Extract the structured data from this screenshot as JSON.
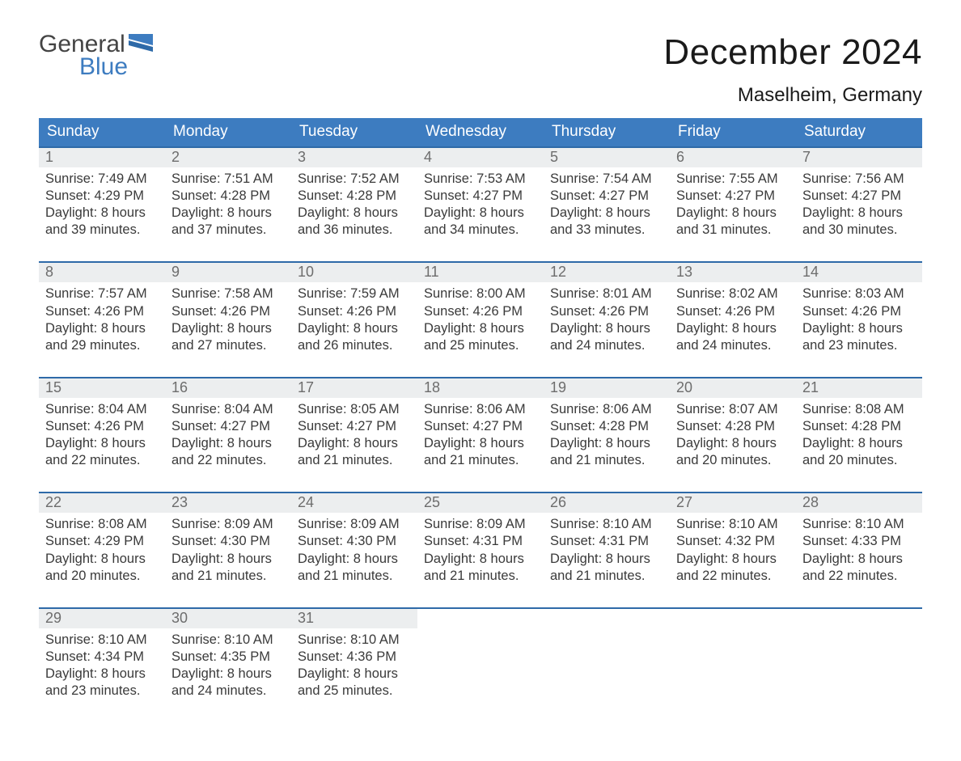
{
  "logo": {
    "line1": "General",
    "line2": "Blue"
  },
  "title": "December 2024",
  "location": "Maselheim, Germany",
  "colors": {
    "header_bg": "#3d7cc0",
    "week_line": "#2e6aa8",
    "daynum_bg": "#eceeef",
    "text_main": "#3a3a3a",
    "text_gray": "#6d6d6d",
    "page_bg": "#ffffff"
  },
  "day_headers": [
    "Sunday",
    "Monday",
    "Tuesday",
    "Wednesday",
    "Thursday",
    "Friday",
    "Saturday"
  ],
  "weeks": [
    [
      {
        "n": "1",
        "sunrise": "7:49 AM",
        "sunset": "4:29 PM",
        "dl1": "8 hours",
        "dl2": "and 39 minutes."
      },
      {
        "n": "2",
        "sunrise": "7:51 AM",
        "sunset": "4:28 PM",
        "dl1": "8 hours",
        "dl2": "and 37 minutes."
      },
      {
        "n": "3",
        "sunrise": "7:52 AM",
        "sunset": "4:28 PM",
        "dl1": "8 hours",
        "dl2": "and 36 minutes."
      },
      {
        "n": "4",
        "sunrise": "7:53 AM",
        "sunset": "4:27 PM",
        "dl1": "8 hours",
        "dl2": "and 34 minutes."
      },
      {
        "n": "5",
        "sunrise": "7:54 AM",
        "sunset": "4:27 PM",
        "dl1": "8 hours",
        "dl2": "and 33 minutes."
      },
      {
        "n": "6",
        "sunrise": "7:55 AM",
        "sunset": "4:27 PM",
        "dl1": "8 hours",
        "dl2": "and 31 minutes."
      },
      {
        "n": "7",
        "sunrise": "7:56 AM",
        "sunset": "4:27 PM",
        "dl1": "8 hours",
        "dl2": "and 30 minutes."
      }
    ],
    [
      {
        "n": "8",
        "sunrise": "7:57 AM",
        "sunset": "4:26 PM",
        "dl1": "8 hours",
        "dl2": "and 29 minutes."
      },
      {
        "n": "9",
        "sunrise": "7:58 AM",
        "sunset": "4:26 PM",
        "dl1": "8 hours",
        "dl2": "and 27 minutes."
      },
      {
        "n": "10",
        "sunrise": "7:59 AM",
        "sunset": "4:26 PM",
        "dl1": "8 hours",
        "dl2": "and 26 minutes."
      },
      {
        "n": "11",
        "sunrise": "8:00 AM",
        "sunset": "4:26 PM",
        "dl1": "8 hours",
        "dl2": "and 25 minutes."
      },
      {
        "n": "12",
        "sunrise": "8:01 AM",
        "sunset": "4:26 PM",
        "dl1": "8 hours",
        "dl2": "and 24 minutes."
      },
      {
        "n": "13",
        "sunrise": "8:02 AM",
        "sunset": "4:26 PM",
        "dl1": "8 hours",
        "dl2": "and 24 minutes."
      },
      {
        "n": "14",
        "sunrise": "8:03 AM",
        "sunset": "4:26 PM",
        "dl1": "8 hours",
        "dl2": "and 23 minutes."
      }
    ],
    [
      {
        "n": "15",
        "sunrise": "8:04 AM",
        "sunset": "4:26 PM",
        "dl1": "8 hours",
        "dl2": "and 22 minutes."
      },
      {
        "n": "16",
        "sunrise": "8:04 AM",
        "sunset": "4:27 PM",
        "dl1": "8 hours",
        "dl2": "and 22 minutes."
      },
      {
        "n": "17",
        "sunrise": "8:05 AM",
        "sunset": "4:27 PM",
        "dl1": "8 hours",
        "dl2": "and 21 minutes."
      },
      {
        "n": "18",
        "sunrise": "8:06 AM",
        "sunset": "4:27 PM",
        "dl1": "8 hours",
        "dl2": "and 21 minutes."
      },
      {
        "n": "19",
        "sunrise": "8:06 AM",
        "sunset": "4:28 PM",
        "dl1": "8 hours",
        "dl2": "and 21 minutes."
      },
      {
        "n": "20",
        "sunrise": "8:07 AM",
        "sunset": "4:28 PM",
        "dl1": "8 hours",
        "dl2": "and 20 minutes."
      },
      {
        "n": "21",
        "sunrise": "8:08 AM",
        "sunset": "4:28 PM",
        "dl1": "8 hours",
        "dl2": "and 20 minutes."
      }
    ],
    [
      {
        "n": "22",
        "sunrise": "8:08 AM",
        "sunset": "4:29 PM",
        "dl1": "8 hours",
        "dl2": "and 20 minutes."
      },
      {
        "n": "23",
        "sunrise": "8:09 AM",
        "sunset": "4:30 PM",
        "dl1": "8 hours",
        "dl2": "and 21 minutes."
      },
      {
        "n": "24",
        "sunrise": "8:09 AM",
        "sunset": "4:30 PM",
        "dl1": "8 hours",
        "dl2": "and 21 minutes."
      },
      {
        "n": "25",
        "sunrise": "8:09 AM",
        "sunset": "4:31 PM",
        "dl1": "8 hours",
        "dl2": "and 21 minutes."
      },
      {
        "n": "26",
        "sunrise": "8:10 AM",
        "sunset": "4:31 PM",
        "dl1": "8 hours",
        "dl2": "and 21 minutes."
      },
      {
        "n": "27",
        "sunrise": "8:10 AM",
        "sunset": "4:32 PM",
        "dl1": "8 hours",
        "dl2": "and 22 minutes."
      },
      {
        "n": "28",
        "sunrise": "8:10 AM",
        "sunset": "4:33 PM",
        "dl1": "8 hours",
        "dl2": "and 22 minutes."
      }
    ],
    [
      {
        "n": "29",
        "sunrise": "8:10 AM",
        "sunset": "4:34 PM",
        "dl1": "8 hours",
        "dl2": "and 23 minutes."
      },
      {
        "n": "30",
        "sunrise": "8:10 AM",
        "sunset": "4:35 PM",
        "dl1": "8 hours",
        "dl2": "and 24 minutes."
      },
      {
        "n": "31",
        "sunrise": "8:10 AM",
        "sunset": "4:36 PM",
        "dl1": "8 hours",
        "dl2": "and 25 minutes."
      },
      null,
      null,
      null,
      null
    ]
  ],
  "labels": {
    "sunrise": "Sunrise: ",
    "sunset": "Sunset: ",
    "daylight": "Daylight: "
  }
}
